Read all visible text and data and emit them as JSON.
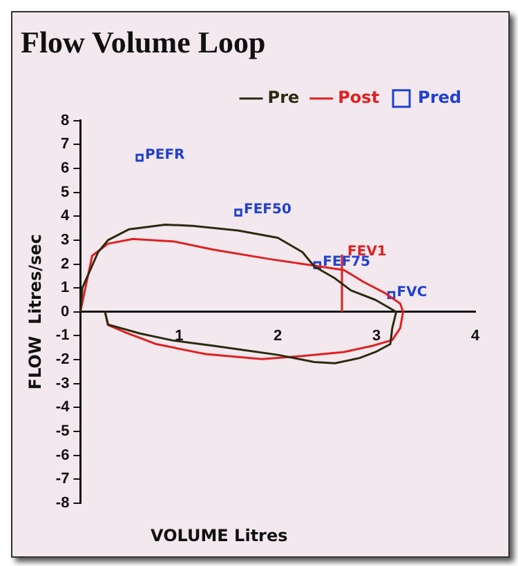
{
  "chart_data": {
    "type": "line",
    "title": "Flow Volume Loop",
    "xlabel": "VOLUME  Litres",
    "ylabel": "FLOW  Litres/sec",
    "xlim": [
      0,
      4
    ],
    "xticks": [
      {
        "value": 0,
        "label": null
      },
      1,
      2,
      3,
      4
    ],
    "ylim": [
      -8,
      8
    ],
    "yticks": [
      -8,
      -7,
      -6,
      -5,
      -4,
      -3,
      -2,
      -1,
      0,
      1,
      2,
      3,
      4,
      5,
      6,
      7,
      8
    ],
    "grid": false,
    "legend": "top right",
    "marker": "none",
    "series": [
      {
        "name": "Pre",
        "color": "#2a2a10",
        "x": [
          0,
          0.02,
          0.18,
          0.28,
          0.49,
          0.86,
          1.14,
          1.6,
          2.0,
          2.25,
          2.37,
          2.58,
          2.74,
          2.99,
          3.2,
          3.16,
          3.14,
          2.99,
          2.83,
          2.58,
          2.37,
          2.0,
          1.35,
          0.94,
          0.6,
          0.28,
          0.25
        ],
        "values": [
          0,
          1,
          2.5,
          3.0,
          3.45,
          3.65,
          3.6,
          3.4,
          3.1,
          2.5,
          1.9,
          1.4,
          0.9,
          0.5,
          0,
          -0.68,
          -1.35,
          -1.68,
          -1.93,
          -2.15,
          -2.1,
          -1.8,
          -1.42,
          -1.2,
          -0.9,
          -0.53,
          0
        ]
      },
      {
        "name": "Post",
        "color": "#e02020",
        "x": [
          0,
          0.12,
          0.28,
          0.53,
          0.94,
          1.35,
          1.93,
          2.34,
          2.67,
          2.87,
          3.08,
          3.24,
          3.27,
          3.24,
          3.16,
          2.96,
          2.67,
          2.25,
          1.84,
          1.27,
          0.77,
          0.45,
          0.28,
          0.25
        ],
        "values": [
          0,
          2.35,
          2.85,
          3.05,
          2.95,
          2.6,
          2.2,
          1.95,
          1.75,
          1.25,
          0.8,
          0.35,
          0,
          -0.68,
          -1.18,
          -1.42,
          -1.68,
          -1.85,
          -1.98,
          -1.77,
          -1.35,
          -0.85,
          -0.55,
          0
        ]
      },
      {
        "color": "#e02020",
        "x": [
          2.65,
          2.65
        ],
        "values": [
          0,
          2.4
        ]
      },
      {
        "name": "Pred",
        "type": "scatter",
        "marker": "square",
        "color": "#2040d0",
        "x": [
          0.6,
          1.6,
          2.4,
          3.15
        ],
        "values": [
          6.45,
          4.15,
          1.95,
          0.7
        ]
      }
    ],
    "annotations": [
      {
        "text": "PEFR",
        "x": 0.6,
        "y": 6.45
      },
      {
        "text": "FEF50",
        "x": 1.6,
        "y": 4.15
      },
      {
        "text": "FEV1",
        "x": 2.65,
        "y": 2.4
      },
      {
        "text": "FEF75",
        "x": 2.4,
        "y": 1.95
      },
      {
        "text": "FVC",
        "x": 3.15,
        "y": 0.7
      }
    ]
  }
}
